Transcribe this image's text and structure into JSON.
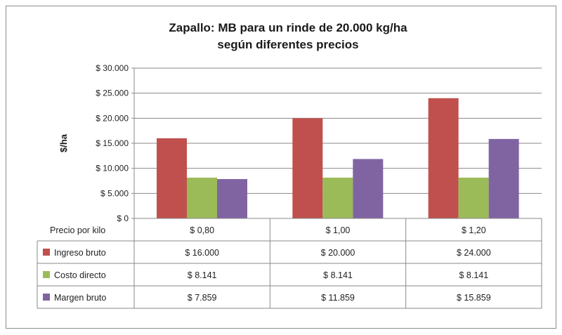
{
  "chart_data": {
    "type": "bar",
    "title_lines": [
      "Zapallo: MB para un rinde de 20.000 kg/ha",
      "según diferentes precios"
    ],
    "ylabel": "$/ha",
    "xlabel": "Precio  por kilo",
    "categories": [
      "$ 0,80",
      "$ 1,00",
      "$ 1,20"
    ],
    "ylim": [
      0,
      30000
    ],
    "yticks": [
      0,
      5000,
      10000,
      15000,
      20000,
      25000,
      30000
    ],
    "ytick_labels": [
      "$ 0",
      "$ 5.000",
      "$ 10.000",
      "$ 15.000",
      "$ 20.000",
      "$ 25.000",
      "$ 30.000"
    ],
    "grid": true,
    "legend_placement": "data-table",
    "series": [
      {
        "name": "Ingreso bruto",
        "color": "#c0504d",
        "values": [
          16000,
          20000,
          24000
        ],
        "labels": [
          "$ 16.000",
          "$ 20.000",
          "$ 24.000"
        ]
      },
      {
        "name": "Costo directo",
        "color": "#9bbb59",
        "values": [
          8141,
          8141,
          8141
        ],
        "labels": [
          "$ 8.141",
          "$ 8.141",
          "$ 8.141"
        ]
      },
      {
        "name": "Margen bruto",
        "color": "#8064a2",
        "values": [
          7859,
          11859,
          15859
        ],
        "labels": [
          "$ 7.859",
          "$ 11.859",
          "$ 15.859"
        ]
      }
    ]
  }
}
